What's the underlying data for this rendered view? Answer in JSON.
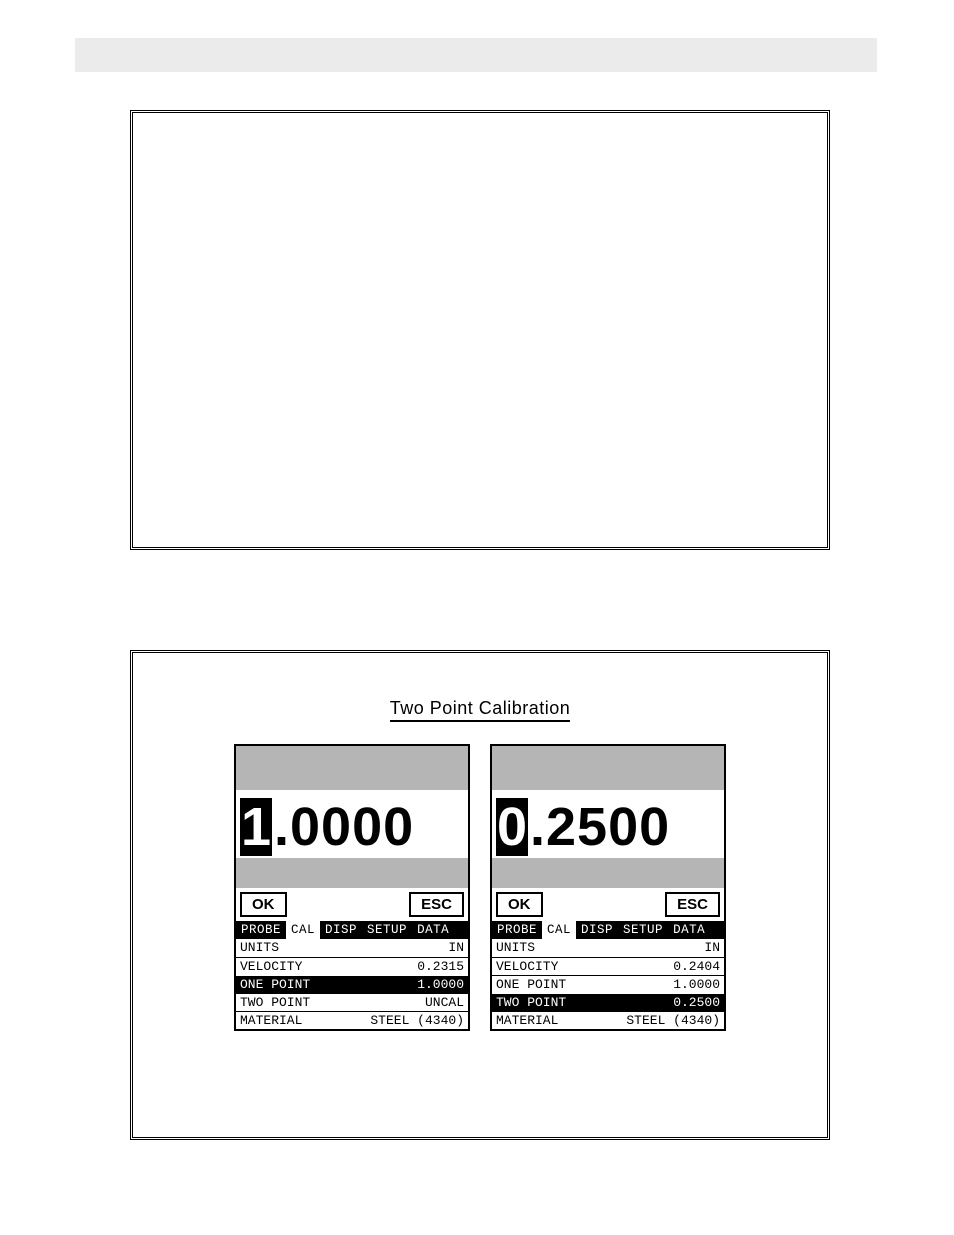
{
  "section": {
    "heading": "Two Point Calibration"
  },
  "lcd_common": {
    "buttons": {
      "ok": "OK",
      "esc": "ESC"
    },
    "tabs": [
      "PROBE",
      "CAL",
      "DISP",
      "SETUP",
      "DATA"
    ],
    "active_tab_index": 1,
    "menu_labels": {
      "units": "UNITS",
      "velocity": "VELOCITY",
      "one_point": "ONE POINT",
      "two_point": "TWO POINT",
      "material": "MATERIAL"
    }
  },
  "screen_left": {
    "display": {
      "highlight_digit": "1",
      "rest": ".0000"
    },
    "selected_row": "one_point",
    "values": {
      "units": "IN",
      "velocity": "0.2315",
      "one_point": "1.0000",
      "two_point": "UNCAL",
      "material": "STEEL (4340)"
    }
  },
  "screen_right": {
    "display": {
      "highlight_digit": "0",
      "rest": ".2500"
    },
    "selected_row": "two_point",
    "values": {
      "units": "IN",
      "velocity": "0.2404",
      "one_point": "1.0000",
      "two_point": "0.2500",
      "material": "STEEL (4340)"
    }
  },
  "style": {
    "page_bg": "#ffffff",
    "header_bar_bg": "#ebebeb",
    "lcd_gray": "#b5b5b5",
    "border_color": "#000000",
    "highlight_bg": "#000000",
    "highlight_fg": "#ffffff",
    "body_font": "Courier New",
    "heading_font": "Arial",
    "digit_fontsize": 54,
    "menu_fontsize": 13,
    "heading_fontsize": 18
  }
}
